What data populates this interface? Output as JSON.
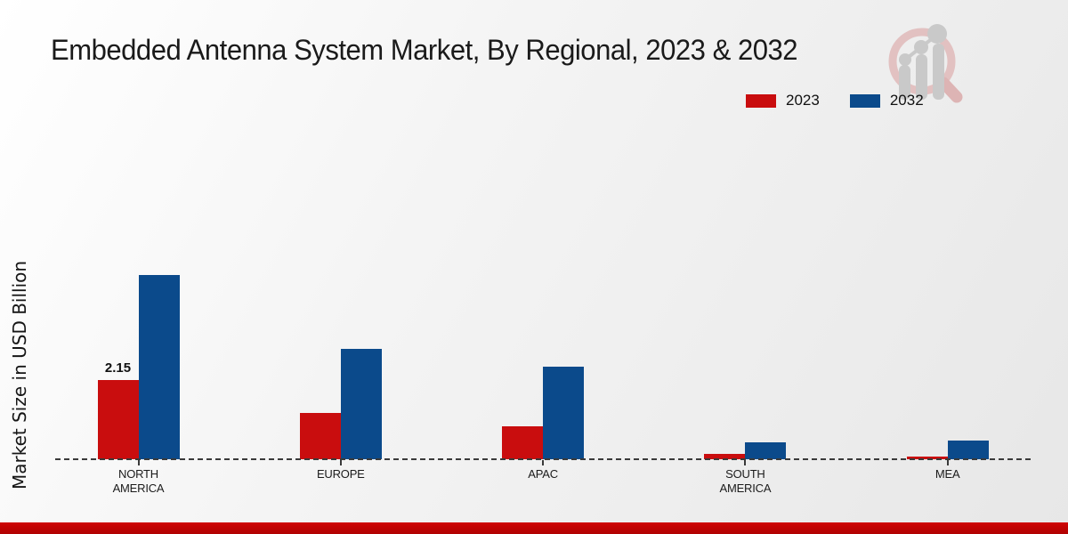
{
  "title": "Embedded Antenna System Market, By Regional, 2023 & 2032",
  "ylabel": "Market Size in USD Billion",
  "legend": [
    {
      "label": "2023",
      "color": "#c90d0e"
    },
    {
      "label": "2032",
      "color": "#0b4a8b"
    }
  ],
  "chart_data": {
    "type": "bar",
    "title": "Embedded Antenna System Market, By Regional, 2023 & 2032",
    "xlabel": "",
    "ylabel": "Market Size in USD Billion",
    "categories": [
      "NORTH AMERICA",
      "EUROPE",
      "APAC",
      "SOUTH AMERICA",
      "MEA"
    ],
    "series": [
      {
        "name": "2023",
        "color": "#c90d0e",
        "values": [
          2.15,
          1.25,
          0.9,
          0.15,
          0.07
        ]
      },
      {
        "name": "2032",
        "color": "#0b4a8b",
        "values": [
          5.0,
          3.0,
          2.5,
          0.45,
          0.5
        ]
      }
    ],
    "ylim": [
      0,
      5.5
    ],
    "grid": false,
    "legend_position": "top-right",
    "baseline_style": "dashed",
    "data_labels": [
      {
        "category": "NORTH AMERICA",
        "series": "2023",
        "text": "2.15"
      }
    ]
  },
  "icons": {
    "logo": "magnifier-bar-chart-logo"
  },
  "colors": {
    "footer_bar_top": "#cf0404",
    "footer_bar_bottom": "#b00202",
    "logo_ring": "#e2c1c1",
    "logo_handle": "#ddb4b4",
    "logo_bars": "#c9c9c9"
  }
}
